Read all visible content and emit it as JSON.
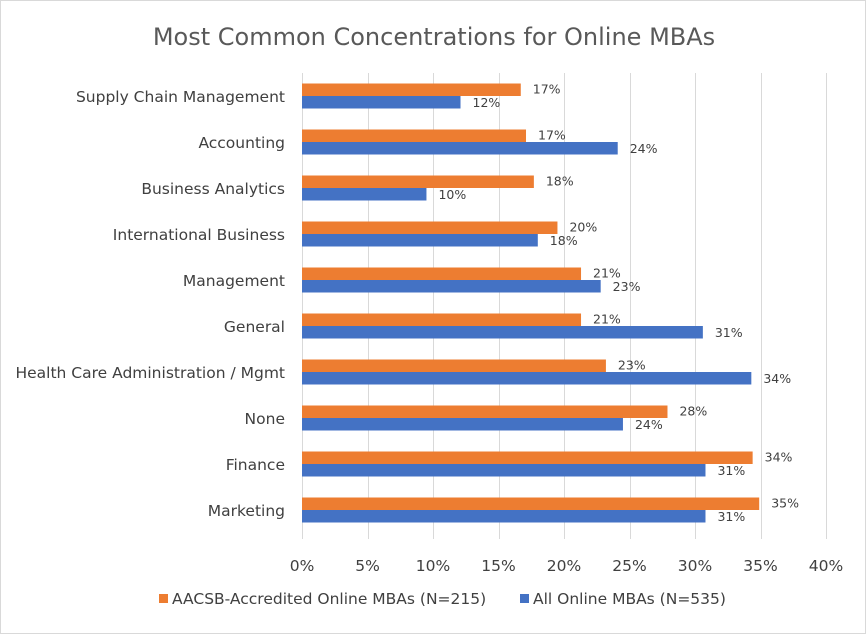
{
  "chart_data": {
    "type": "bar",
    "orientation": "horizontal",
    "title": "Most Common Concentrations for Online MBAs",
    "categories": [
      "Supply Chain Management",
      "Accounting",
      "Business Analytics",
      "International Business",
      "Management",
      "General",
      "Health Care Administration / Mgmt",
      "None",
      "Finance",
      "Marketing"
    ],
    "series": [
      {
        "name": "AACSB-Accredited Online MBAs (N=215)",
        "color": "#ED7D31",
        "values": [
          16.7,
          17.1,
          17.7,
          19.5,
          21.3,
          21.3,
          23.2,
          27.9,
          34.4,
          34.9
        ],
        "labels": [
          "17%",
          "17%",
          "18%",
          "20%",
          "21%",
          "21%",
          "23%",
          "28%",
          "34%",
          "35%"
        ]
      },
      {
        "name": "All Online MBAs (N=535)",
        "color": "#4472C4",
        "values": [
          12.1,
          24.1,
          9.5,
          18.0,
          22.8,
          30.6,
          34.3,
          24.5,
          30.8,
          30.8
        ],
        "labels": [
          "12%",
          "24%",
          "10%",
          "18%",
          "23%",
          "31%",
          "34%",
          "24%",
          "31%",
          "31%"
        ]
      }
    ],
    "xlim": [
      0,
      40
    ],
    "xticks": [
      0,
      5,
      10,
      15,
      20,
      25,
      30,
      35,
      40
    ],
    "xtick_labels": [
      "0%",
      "5%",
      "10%",
      "15%",
      "20%",
      "25%",
      "30%",
      "35%",
      "40%"
    ],
    "grid": true,
    "gridline_color": "#d9d9d9",
    "legend_position": "bottom"
  }
}
